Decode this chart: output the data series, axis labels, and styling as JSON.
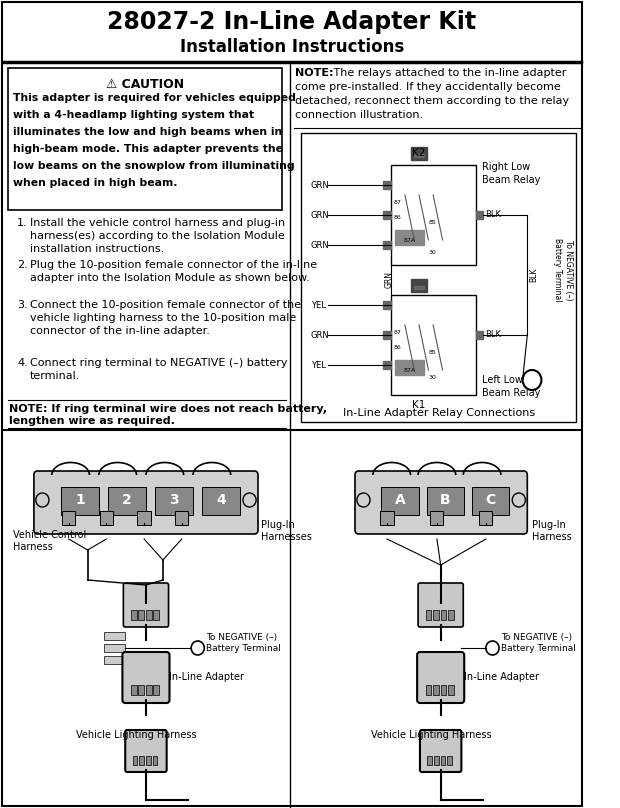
{
  "title": "28027-2 In-Line Adapter Kit",
  "subtitle": "Installation Instructions",
  "bg_color": "#ffffff",
  "title_fontsize": 17,
  "subtitle_fontsize": 12,
  "caution_title": "⚠ CAUTION",
  "caution_body_bold": "This adapter is required for vehicles equipped\nwith a 4-headlamp lighting system that\nilluminates the low ",
  "caution_body_italic": "and",
  "caution_body_bold2": " high beams when in\nhigh-beam mode. This adapter prevents the\nlow beams on the snowplow from illuminating\nwhen placed in high beam.",
  "note_right_bold": "NOTE:",
  "note_right_rest": " The relays attached to the in-line adapter\ncome pre-installed. If they accidentally become\ndetached, reconnect them according to the relay\nconnection illustration.",
  "steps": [
    "Install the vehicle control harness and plug-in\nharness(es) according to the Isolation Module\ninstallation instructions.",
    "Plug the 10-position female connector of the in-line\nadapter into the Isolation Module as shown below.",
    "Connect the 10-position female connector of the\nvehicle lighting harness to the 10-position male\nconnector of the in-line adapter.",
    "Connect ring terminal to NEGATIVE (–) battery\nterminal."
  ],
  "note_bottom": "NOTE: If ring terminal wire does not reach battery,\nlengthen wire as required.",
  "relay_caption": "In-Line Adapter Relay Connections",
  "connector_numbers": [
    "1",
    "2",
    "3",
    "4"
  ],
  "connector_letters": [
    "A",
    "B",
    "C"
  ],
  "relay_wire_labels_left": [
    "GRN",
    "GRN",
    "GRN",
    "YEL",
    "GRN",
    "YEL"
  ],
  "relay_k1": "K1",
  "relay_k2": "K2",
  "relay_right_label": "Right Low\nBeam Relay",
  "relay_left_label": "Left Low\nBeam Relay",
  "relay_blk_top": "BLK",
  "relay_blk_bottom": "BLK",
  "relay_grn_vert": "GRN",
  "relay_blk_vert_right": "BLK",
  "relay_neg_text": "To NEGATIVE (–)\nBattery Terminal"
}
